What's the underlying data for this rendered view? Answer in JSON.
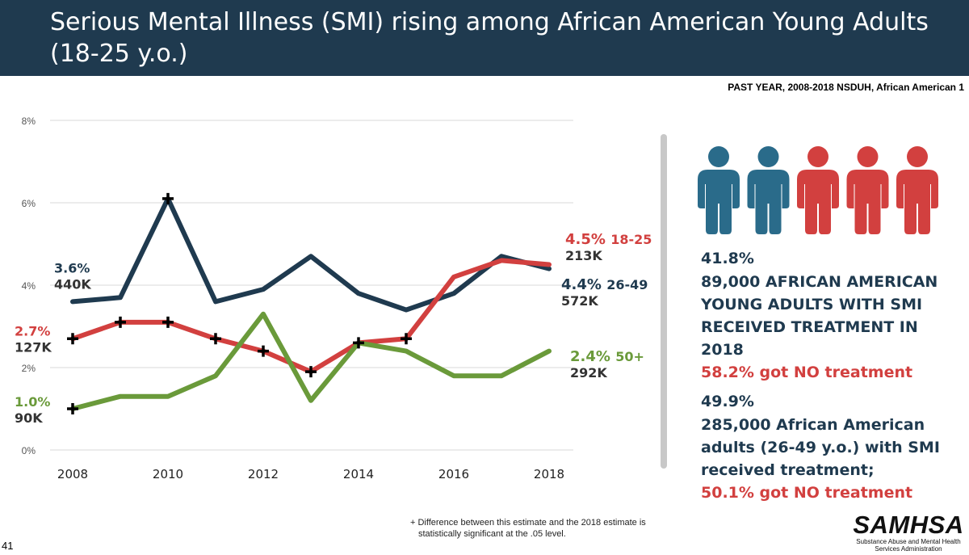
{
  "title": "Serious Mental Illness (SMI) rising among African American Young Adults (18-25 y.o.)",
  "source_note": "PAST YEAR, 2008-2018 NSDUH, African American 1",
  "chart_data": {
    "type": "line",
    "x": [
      2008,
      2009,
      2010,
      2011,
      2012,
      2013,
      2014,
      2015,
      2016,
      2017,
      2018
    ],
    "ylim": [
      0,
      8
    ],
    "y_ticks": [
      "0%",
      "2%",
      "4%",
      "6%",
      "8%"
    ],
    "x_ticks": [
      "2008",
      "2010",
      "2012",
      "2014",
      "2016",
      "2018"
    ],
    "grid": true,
    "series": [
      {
        "name": "26-49",
        "color": "#1f3a4f",
        "values": [
          3.6,
          3.7,
          6.1,
          3.6,
          3.9,
          4.7,
          3.8,
          3.4,
          3.8,
          4.7,
          4.4
        ],
        "significant": [
          false,
          false,
          true,
          false,
          false,
          false,
          false,
          false,
          false,
          false,
          false
        ],
        "start_label": {
          "pct": "3.6%",
          "count": "440K"
        },
        "end_label": {
          "pct": "4.4%",
          "group": "26-49",
          "count": "572K"
        }
      },
      {
        "name": "18-25",
        "color": "#d2403f",
        "values": [
          2.7,
          3.1,
          3.1,
          2.7,
          2.4,
          1.9,
          2.6,
          2.7,
          4.2,
          4.6,
          4.5
        ],
        "significant": [
          true,
          true,
          true,
          true,
          true,
          true,
          true,
          true,
          false,
          false,
          false
        ],
        "start_label": {
          "pct": "2.7%",
          "count": "127K"
        },
        "end_label": {
          "pct": "4.5%",
          "group": "18-25",
          "count": "213K"
        }
      },
      {
        "name": "50+",
        "color": "#6a9a3a",
        "values": [
          1.0,
          1.3,
          1.3,
          1.8,
          3.3,
          1.2,
          2.6,
          2.4,
          1.8,
          1.8,
          2.4
        ],
        "significant": [
          true,
          false,
          false,
          false,
          false,
          false,
          false,
          false,
          false,
          false,
          false
        ],
        "start_label": {
          "pct": "1.0%",
          "count": "90K"
        },
        "end_label": {
          "pct": "2.4%",
          "group": "50+",
          "count": "292K"
        }
      }
    ]
  },
  "people_icons": [
    {
      "icon": "person-icon",
      "color": "#2a6b8a"
    },
    {
      "icon": "person-icon",
      "color": "#2a6b8a"
    },
    {
      "icon": "person-icon",
      "color": "#d2403f"
    },
    {
      "icon": "person-icon",
      "color": "#d2403f"
    },
    {
      "icon": "person-icon",
      "color": "#d2403f"
    }
  ],
  "stats": {
    "young_pct": "41.8%",
    "young_line1": "89,000 AFRICAN AMERICAN",
    "young_line2": "YOUNG ADULTS WITH SMI",
    "young_line3": "RECEIVED TREATMENT IN",
    "young_line4": "2018",
    "young_no_treatment": "58.2% got NO treatment",
    "adult_pct": "49.9%",
    "adult_line1": "285,000 African American",
    "adult_line2": "adults (26-49 y.o.) with SMI",
    "adult_line3": "received treatment;",
    "adult_no_treatment": "50.1% got NO treatment"
  },
  "footnote": {
    "line1": "+ Difference between this estimate and the 2018 estimate is",
    "line2": "statistically significant at the .05 level."
  },
  "slide_number": "41",
  "logo": {
    "word": "SAMHSA",
    "subtitle_line1": "Substance Abuse and Mental Health",
    "subtitle_line2": "Services Administration"
  }
}
